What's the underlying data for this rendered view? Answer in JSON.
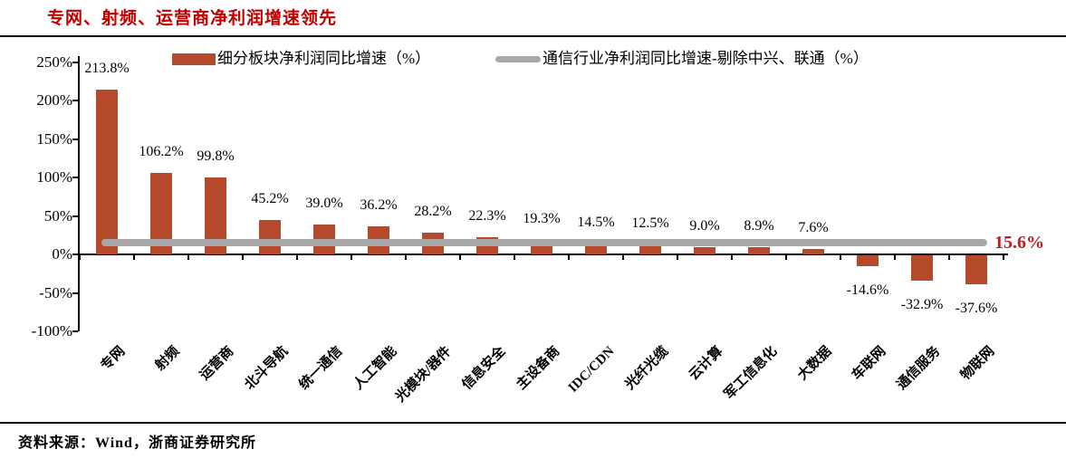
{
  "page": {
    "title": "专网、射频、运营商净利润增速领先",
    "source": "资料来源：Wind，浙商证券研究所"
  },
  "chart_data": {
    "type": "bar",
    "title": "专网、射频、运营商净利润增速领先",
    "categories": [
      "专网",
      "射频",
      "运营商",
      "北斗导航",
      "统一通信",
      "人工智能",
      "光模块/器件",
      "信息安全",
      "主设备商",
      "IDC/CDN",
      "光纤光缆",
      "云计算",
      "军工信息化",
      "大数据",
      "车联网",
      "通信服务",
      "物联网"
    ],
    "series": [
      {
        "name": "细分板块净利润同比增速（%）",
        "type": "bar",
        "values": [
          213.8,
          106.2,
          99.8,
          45.2,
          39.0,
          36.2,
          28.2,
          22.3,
          19.3,
          14.5,
          12.5,
          9.0,
          8.9,
          7.6,
          -14.6,
          -32.9,
          -37.6
        ]
      },
      {
        "name": "通信行业净利润同比增速-剔除中兴、联通（%）",
        "type": "line",
        "value": 15.6,
        "label": "15.6%"
      }
    ],
    "value_labels": [
      "213.8%",
      "106.2%",
      "99.8%",
      "45.2%",
      "39.0%",
      "36.2%",
      "28.2%",
      "22.3%",
      "19.3%",
      "14.5%",
      "12.5%",
      "9.0%",
      "8.9%",
      "7.6%",
      "-14.6%",
      "-32.9%",
      "-37.6%"
    ],
    "y_axis": {
      "tick_values": [
        250,
        200,
        150,
        100,
        50,
        0,
        -50,
        -100
      ],
      "unit": "%",
      "ylim": [
        -100,
        250
      ]
    },
    "legend_position": "top",
    "grid": "off",
    "colors": {
      "bar": "#b5492b",
      "line": "#a8a8a8",
      "title_red": "#c00000",
      "benchmark_label_red": "#b22222",
      "axis": "#000000"
    }
  }
}
